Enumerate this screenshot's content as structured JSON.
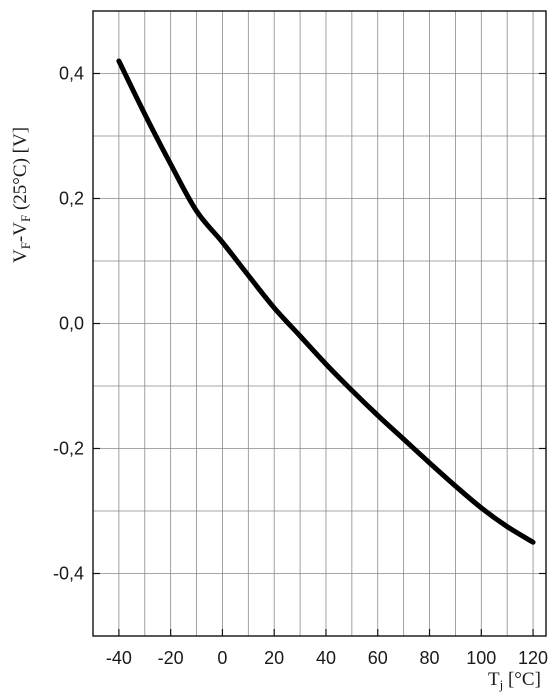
{
  "chart_data": {
    "type": "line",
    "xlabel": {
      "main": "T",
      "sub": "j",
      "unit": " [°C]"
    },
    "ylabel": {
      "p1": "V",
      "s1": "F",
      "p2": "-V",
      "s2": "F",
      "p3": " (25°C) [V]"
    },
    "xlim": [
      -50,
      125
    ],
    "ylim": [
      -0.5,
      0.5
    ],
    "x_ticks": [
      -40,
      -20,
      0,
      20,
      40,
      60,
      80,
      100,
      120
    ],
    "x_tick_labels": [
      "-40",
      "-20",
      "0",
      "20",
      "40",
      "60",
      "80",
      "100",
      "120"
    ],
    "x_minor_grid_step": 10,
    "y_ticks": [
      0.4,
      0.2,
      0.0,
      -0.2,
      -0.4
    ],
    "y_tick_labels": [
      "0,4",
      "0,2",
      "0,0",
      "-0,2",
      "-0,4"
    ],
    "y_minor_grid_step": 0.1,
    "grid": true,
    "series": [
      {
        "x": [
          -40,
          -30,
          -20,
          -10,
          0,
          10,
          20,
          30,
          40,
          50,
          60,
          70,
          80,
          90,
          100,
          110,
          120
        ],
        "y": [
          0.42,
          0.335,
          0.255,
          0.18,
          0.13,
          0.077,
          0.025,
          -0.02,
          -0.065,
          -0.107,
          -0.147,
          -0.185,
          -0.223,
          -0.26,
          -0.295,
          -0.325,
          -0.35
        ]
      }
    ]
  }
}
